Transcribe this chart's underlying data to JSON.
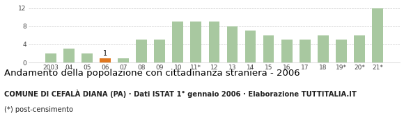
{
  "categories": [
    "2003",
    "04",
    "05",
    "06",
    "07",
    "08",
    "09",
    "10",
    "11*",
    "12",
    "13",
    "14",
    "15",
    "16",
    "17",
    "18",
    "19*",
    "20*",
    "21*"
  ],
  "values": [
    2,
    3,
    2,
    1,
    1,
    5,
    5,
    9,
    9,
    9,
    8,
    7,
    6,
    5,
    5,
    6,
    5,
    6,
    12
  ],
  "bar_colors": [
    "#a8c8a0",
    "#a8c8a0",
    "#a8c8a0",
    "#e07820",
    "#a8c8a0",
    "#a8c8a0",
    "#a8c8a0",
    "#a8c8a0",
    "#a8c8a0",
    "#a8c8a0",
    "#a8c8a0",
    "#a8c8a0",
    "#a8c8a0",
    "#a8c8a0",
    "#a8c8a0",
    "#a8c8a0",
    "#a8c8a0",
    "#a8c8a0",
    "#a8c8a0"
  ],
  "highlighted_bar_index": 3,
  "highlighted_bar_label": "1",
  "ylim": [
    0,
    13
  ],
  "yticks": [
    0,
    4,
    8,
    12
  ],
  "title": "Andamento della popolazione con cittadinanza straniera - 2006",
  "subtitle": "COMUNE DI CEFALÀ DIANA (PA) · Dati ISTAT 1° gennaio 2006 · Elaborazione TUTTITALIA.IT",
  "footnote": "(*) post-censimento",
  "title_fontsize": 9.5,
  "subtitle_fontsize": 7.2,
  "footnote_fontsize": 7.2,
  "tick_fontsize": 6.5,
  "background_color": "#ffffff",
  "grid_color": "#cccccc",
  "bar_width": 0.6
}
